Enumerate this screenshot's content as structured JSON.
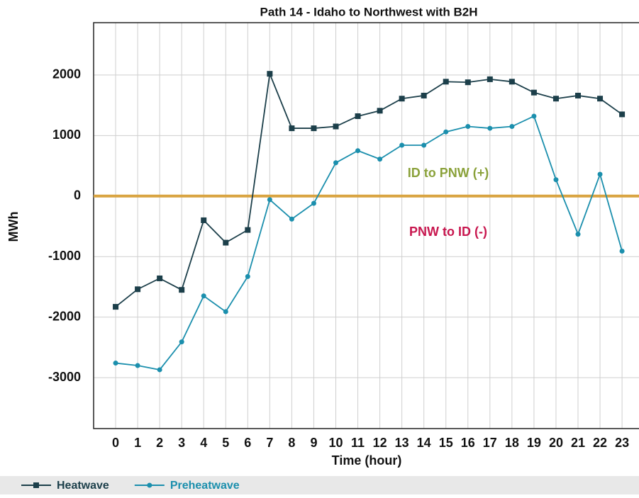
{
  "chart_data": {
    "type": "line",
    "title": "Path 14 - Idaho to Northwest with B2H",
    "x_label": "Time (hour)",
    "y_label": "MWh",
    "x": [
      0,
      1,
      2,
      3,
      4,
      5,
      6,
      7,
      8,
      9,
      10,
      11,
      12,
      13,
      14,
      15,
      16,
      17,
      18,
      19,
      20,
      21,
      22,
      23
    ],
    "series": [
      {
        "name": "Heatwave",
        "color": "#1c3f4a",
        "marker": "square",
        "values": [
          -1830,
          -1540,
          -1360,
          -1550,
          -400,
          -770,
          -560,
          2020,
          1120,
          1120,
          1150,
          1320,
          1410,
          1610,
          1660,
          1890,
          1880,
          1930,
          1890,
          1710,
          1610,
          1660,
          1610,
          1350
        ]
      },
      {
        "name": "Preheatwave",
        "color": "#1b8fad",
        "marker": "circle",
        "values": [
          -2760,
          -2800,
          -2870,
          -2410,
          -1650,
          -1910,
          -1330,
          -60,
          -380,
          -120,
          550,
          750,
          610,
          840,
          840,
          1060,
          1150,
          1120,
          1150,
          1320,
          270,
          -630,
          360,
          -910
        ]
      }
    ],
    "xlim": [
      -1,
      23.77
    ],
    "xticks": [
      0,
      1,
      2,
      3,
      4,
      5,
      6,
      7,
      8,
      9,
      10,
      11,
      12,
      13,
      14,
      15,
      16,
      17,
      18,
      19,
      20,
      21,
      22,
      23
    ],
    "ylim": [
      -3842,
      2865
    ],
    "yticks": [
      -3000,
      -2000,
      -1000,
      0,
      1000,
      2000
    ],
    "grid": true,
    "reference_line": {
      "value": 0,
      "color": "#d9a441"
    },
    "annotations": [
      {
        "text": "ID to PNW (+)",
        "color": "#8aa13a"
      },
      {
        "text": "PNW to ID (-)",
        "color": "#c8174f"
      }
    ],
    "legend": "bottom"
  }
}
